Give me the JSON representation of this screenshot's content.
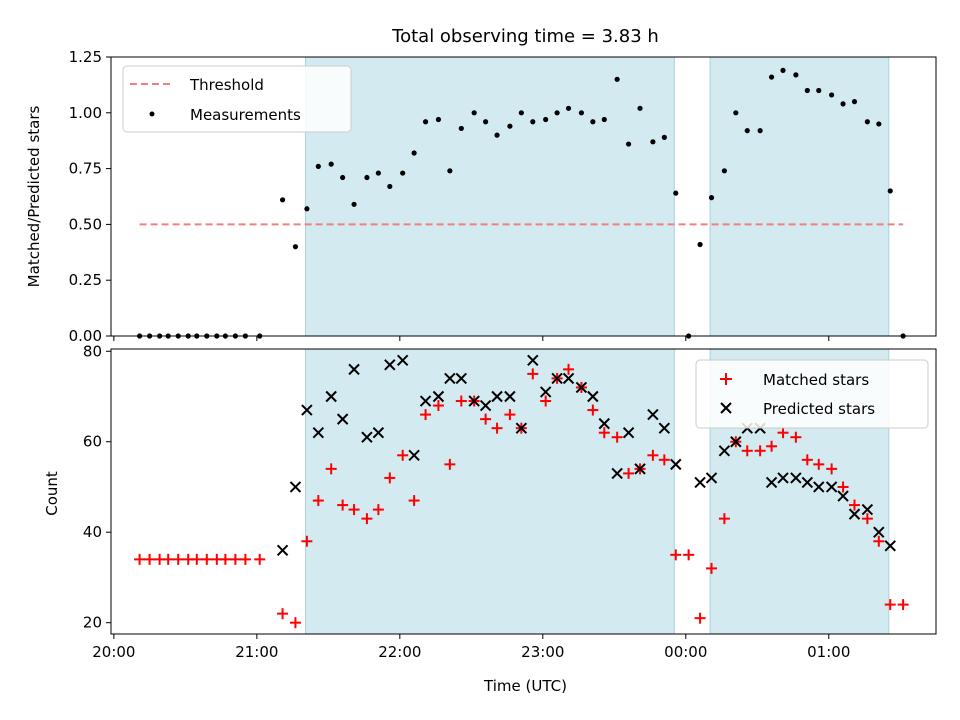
{
  "chart_data": {
    "type": "scatter",
    "title": "Total observing time = 3.83 h",
    "xlabel": "Time (UTC)",
    "x_range_hours": [
      19.98,
      25.75
    ],
    "x_ticks": [
      {
        "value": 20,
        "label": "20:00"
      },
      {
        "value": 21,
        "label": "21:00"
      },
      {
        "value": 22,
        "label": "22:00"
      },
      {
        "value": 23,
        "label": "23:00"
      },
      {
        "value": 24,
        "label": "00:00"
      },
      {
        "value": 25,
        "label": "01:00"
      }
    ],
    "observing_windows": [
      [
        21.34,
        23.92
      ],
      [
        24.17,
        25.42
      ]
    ],
    "window_color": "#d3eaf0",
    "top": {
      "ylabel": "Matched/Predicted stars",
      "ylim": [
        0,
        1.25
      ],
      "y_ticks": [
        "0.00",
        "0.25",
        "0.50",
        "0.75",
        "1.00",
        "1.25"
      ],
      "threshold": {
        "name": "Threshold",
        "value": 0.5,
        "x_start": 20.18,
        "x_end": 25.52,
        "color": "#f08080"
      },
      "measurements": {
        "name": "Measurements",
        "color": "#000000",
        "x": [
          20.18,
          20.25,
          20.32,
          20.38,
          20.45,
          20.52,
          20.58,
          20.65,
          20.72,
          20.78,
          20.85,
          20.92,
          21.02,
          21.18,
          21.27,
          21.35,
          21.43,
          21.52,
          21.6,
          21.68,
          21.77,
          21.85,
          21.93,
          22.02,
          22.1,
          22.18,
          22.27,
          22.35,
          22.43,
          22.52,
          22.6,
          22.68,
          22.77,
          22.85,
          22.93,
          23.02,
          23.1,
          23.18,
          23.27,
          23.35,
          23.43,
          23.52,
          23.6,
          23.68,
          23.77,
          23.85,
          23.93,
          24.02,
          24.1,
          24.18,
          24.27,
          24.35,
          24.43,
          24.52,
          24.6,
          24.68,
          24.77,
          24.85,
          24.93,
          25.02,
          25.1,
          25.18,
          25.27,
          25.35,
          25.43,
          25.52
        ],
        "y": [
          0,
          0,
          0,
          0,
          0,
          0,
          0,
          0,
          0,
          0,
          0,
          0,
          0,
          0.61,
          0.4,
          0.57,
          0.76,
          0.77,
          0.71,
          0.59,
          0.71,
          0.73,
          0.67,
          0.73,
          0.82,
          0.96,
          0.97,
          0.74,
          0.93,
          1.0,
          0.96,
          0.9,
          0.94,
          1.0,
          0.96,
          0.97,
          1.0,
          1.02,
          1.0,
          0.96,
          0.97,
          1.15,
          0.86,
          1.02,
          0.87,
          0.89,
          0.64,
          0,
          0.41,
          0.62,
          0.74,
          1.0,
          0.92,
          0.92,
          1.16,
          1.19,
          1.17,
          1.1,
          1.1,
          1.08,
          1.04,
          1.05,
          0.96,
          0.95,
          0.65,
          0
        ]
      }
    },
    "bottom": {
      "ylabel": "Count",
      "ylim": [
        17.5,
        80.5
      ],
      "y_ticks": [
        "20",
        "40",
        "60",
        "80"
      ],
      "matched": {
        "name": "Matched stars",
        "color": "#ff0000",
        "x": [
          20.18,
          20.25,
          20.32,
          20.38,
          20.45,
          20.52,
          20.58,
          20.65,
          20.72,
          20.78,
          20.85,
          20.92,
          21.02,
          21.18,
          21.27,
          21.35,
          21.43,
          21.52,
          21.6,
          21.68,
          21.77,
          21.85,
          21.93,
          22.02,
          22.1,
          22.18,
          22.27,
          22.35,
          22.43,
          22.52,
          22.6,
          22.68,
          22.77,
          22.85,
          22.93,
          23.02,
          23.1,
          23.18,
          23.27,
          23.35,
          23.43,
          23.52,
          23.6,
          23.68,
          23.77,
          23.85,
          23.93,
          24.02,
          24.1,
          24.18,
          24.27,
          24.35,
          24.43,
          24.52,
          24.6,
          24.68,
          24.77,
          24.85,
          24.93,
          25.02,
          25.1,
          25.18,
          25.27,
          25.35,
          25.43,
          25.52
        ],
        "y": [
          34,
          34,
          34,
          34,
          34,
          34,
          34,
          34,
          34,
          34,
          34,
          34,
          34,
          22,
          20,
          38,
          47,
          54,
          46,
          45,
          43,
          45,
          52,
          57,
          47,
          66,
          68,
          55,
          69,
          69,
          65,
          63,
          66,
          63,
          75,
          69,
          74,
          76,
          72,
          67,
          62,
          61,
          53,
          54,
          57,
          56,
          35,
          35,
          21,
          32,
          43,
          60,
          58,
          58,
          59,
          62,
          61,
          56,
          55,
          54,
          50,
          46,
          43,
          38,
          24,
          24
        ]
      },
      "predicted": {
        "name": "Predicted stars",
        "color": "#000000",
        "x": [
          21.18,
          21.27,
          21.35,
          21.43,
          21.52,
          21.6,
          21.68,
          21.77,
          21.85,
          21.93,
          22.02,
          22.1,
          22.18,
          22.27,
          22.35,
          22.43,
          22.52,
          22.6,
          22.68,
          22.77,
          22.85,
          22.93,
          23.02,
          23.1,
          23.18,
          23.27,
          23.35,
          23.43,
          23.52,
          23.6,
          23.68,
          23.77,
          23.85,
          23.93,
          24.1,
          24.18,
          24.27,
          24.35,
          24.43,
          24.52,
          24.6,
          24.68,
          24.77,
          24.85,
          24.93,
          25.02,
          25.1,
          25.18,
          25.27,
          25.35,
          25.43
        ],
        "y": [
          36,
          50,
          67,
          62,
          70,
          65,
          76,
          61,
          62,
          77,
          78,
          57,
          69,
          70,
          74,
          74,
          69,
          68,
          70,
          70,
          63,
          78,
          71,
          74,
          74,
          72,
          70,
          64,
          53,
          62,
          54,
          66,
          63,
          55,
          51,
          52,
          58,
          60,
          63,
          63,
          51,
          52,
          52,
          51,
          50,
          50,
          48,
          44,
          45,
          40,
          37
        ]
      }
    }
  }
}
